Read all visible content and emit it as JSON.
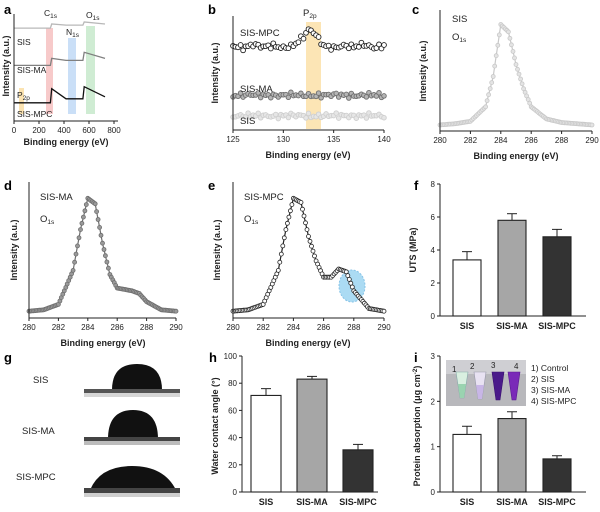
{
  "panels": {
    "a": {
      "letter": "a",
      "ylabel": "Intensity (a.u.)",
      "xlabel": "Binding energy (eV)",
      "xticks": [
        "0",
        "200",
        "400",
        "600",
        "800"
      ],
      "series_labels": [
        "SIS",
        "SIS-MA",
        "SIS-MPC"
      ],
      "peak_labels": [
        "C",
        "N",
        "O",
        "P"
      ],
      "peak_subs": [
        "1s",
        "1s",
        "1s",
        "2p"
      ]
    },
    "b": {
      "letter": "b",
      "ylabel": "Intensity (a.u.)",
      "xlabel": "Binding energy (eV)",
      "xticks": [
        "125",
        "130",
        "135",
        "140"
      ],
      "series_labels": [
        "SIS-MPC",
        "SIS-MA",
        "SIS"
      ],
      "peak_label": "P",
      "peak_sub": "2p"
    },
    "c": {
      "letter": "c",
      "ylabel": "Intensity (a.u.)",
      "xlabel": "Binding energy (eV)",
      "xticks": [
        "280",
        "282",
        "284",
        "286",
        "288",
        "290"
      ],
      "sample": "SIS",
      "orbital": "O",
      "orbital_sub": "1s"
    },
    "d": {
      "letter": "d",
      "ylabel": "Intensity (a.u.)",
      "xlabel": "Binding energy (eV)",
      "xticks": [
        "280",
        "282",
        "284",
        "286",
        "288",
        "290"
      ],
      "sample": "SIS-MA",
      "orbital": "O",
      "orbital_sub": "1s"
    },
    "e": {
      "letter": "e",
      "ylabel": "Intensity (a.u.)",
      "xlabel": "Binding energy (eV)",
      "xticks": [
        "280",
        "282",
        "284",
        "286",
        "288",
        "290"
      ],
      "sample": "SIS-MPC",
      "orbital": "O",
      "orbital_sub": "1s"
    },
    "f": {
      "letter": "f",
      "ylabel": "UTS (MPa)",
      "yticks": [
        "0",
        "2",
        "4",
        "6",
        "8"
      ]
    },
    "g": {
      "letter": "g",
      "samples": [
        "SIS",
        "SIS-MA",
        "SIS-MPC"
      ]
    },
    "h": {
      "letter": "h",
      "ylabel": "Water contact angle (°)",
      "yticks": [
        "0",
        "20",
        "40",
        "60",
        "80",
        "100"
      ]
    },
    "i": {
      "letter": "i",
      "ylabel_main": "Protein absorption (μg cm",
      "ylabel_sup": "-2",
      "ylabel_end": ")",
      "yticks": [
        "0",
        "1",
        "2",
        "3"
      ],
      "legend": [
        "1) Control",
        "2) SIS",
        "3) SIS-MA",
        "4) SIS-MPC"
      ],
      "tube_numbers": [
        "1",
        "2",
        "3",
        "4"
      ]
    }
  },
  "colors": {
    "sis_fill": "#ffffff",
    "ma_fill": "#a6a6a6",
    "mpc_fill": "#333333",
    "c_band": "#f4b8b8",
    "n_band": "#b8d4f4",
    "o_band": "#bfe6c4",
    "p_band": "#fbe0a8",
    "highlight": "#8fd0f0"
  },
  "chart_data": [
    {
      "panel": "a",
      "type": "line",
      "title": "",
      "xlabel": "Binding energy (eV)",
      "ylabel": "Intensity (a.u.)",
      "xlim": [
        0,
        800
      ],
      "grid": false,
      "series": [
        {
          "name": "SIS",
          "x": [
            0,
            280,
            290,
            400,
            530,
            540,
            700
          ],
          "y": [
            0.92,
            0.92,
            0.96,
            0.95,
            0.95,
            0.98,
            0.96
          ]
        },
        {
          "name": "SIS-MA",
          "x": [
            0,
            280,
            290,
            400,
            530,
            540,
            700
          ],
          "y": [
            0.55,
            0.55,
            0.62,
            0.6,
            0.6,
            0.68,
            0.62
          ]
        },
        {
          "name": "SIS-MPC",
          "x": [
            0,
            130,
            280,
            290,
            400,
            530,
            540,
            700
          ],
          "y": [
            0.18,
            0.18,
            0.18,
            0.32,
            0.22,
            0.22,
            0.34,
            0.24
          ]
        }
      ]
    },
    {
      "panel": "b",
      "type": "scatter",
      "title": "",
      "xlabel": "Binding energy (eV)",
      "ylabel": "Intensity (a.u.)",
      "xlim": [
        125,
        140
      ],
      "grid": false,
      "series": [
        {
          "name": "SIS-MPC",
          "x": [
            125,
            126,
            127,
            128,
            129,
            130,
            131,
            132,
            132.5,
            133,
            133.5,
            134,
            135,
            136,
            137,
            138,
            139,
            140
          ],
          "y": [
            0.74,
            0.72,
            0.75,
            0.73,
            0.74,
            0.72,
            0.74,
            0.82,
            0.88,
            0.86,
            0.8,
            0.74,
            0.72,
            0.74,
            0.73,
            0.75,
            0.72,
            0.74
          ]
        },
        {
          "name": "SIS-MA",
          "x": [
            125,
            127,
            129,
            131,
            133,
            135,
            137,
            139,
            140
          ],
          "y": [
            0.3,
            0.31,
            0.3,
            0.31,
            0.3,
            0.31,
            0.3,
            0.31,
            0.3
          ]
        },
        {
          "name": "SIS",
          "x": [
            125,
            127,
            129,
            131,
            133,
            135,
            137,
            139,
            140
          ],
          "y": [
            0.12,
            0.13,
            0.12,
            0.13,
            0.12,
            0.13,
            0.12,
            0.13,
            0.12
          ]
        }
      ]
    },
    {
      "panel": "c",
      "type": "line",
      "title": "",
      "xlabel": "Binding energy (eV)",
      "ylabel": "Intensity (a.u.)",
      "xlim": [
        280,
        290
      ],
      "grid": false,
      "series": [
        {
          "name": "SIS",
          "x": [
            280,
            281,
            282,
            283,
            283.5,
            284,
            284.5,
            285,
            285.5,
            286,
            287,
            288,
            289,
            290
          ],
          "y": [
            0.05,
            0.06,
            0.08,
            0.2,
            0.45,
            0.88,
            0.82,
            0.55,
            0.35,
            0.2,
            0.1,
            0.07,
            0.06,
            0.05
          ]
        }
      ]
    },
    {
      "panel": "d",
      "type": "line",
      "title": "",
      "xlabel": "Binding energy (eV)",
      "ylabel": "Intensity (a.u.)",
      "xlim": [
        280,
        290
      ],
      "grid": false,
      "series": [
        {
          "name": "SIS-MA",
          "x": [
            280,
            281,
            282,
            283,
            283.5,
            284,
            284.5,
            285,
            285.5,
            286,
            287,
            287.5,
            288,
            289,
            290
          ],
          "y": [
            0.05,
            0.06,
            0.1,
            0.35,
            0.65,
            0.88,
            0.84,
            0.55,
            0.32,
            0.22,
            0.2,
            0.18,
            0.12,
            0.06,
            0.05
          ]
        }
      ]
    },
    {
      "panel": "e",
      "type": "line",
      "title": "",
      "xlabel": "Binding energy (eV)",
      "ylabel": "Intensity (a.u.)",
      "xlim": [
        280,
        290
      ],
      "grid": false,
      "series": [
        {
          "name": "SIS-MPC",
          "x": [
            280,
            281,
            282,
            283,
            283.5,
            284,
            284.5,
            285,
            285.5,
            286,
            286.5,
            287,
            287.5,
            288,
            289,
            290
          ],
          "y": [
            0.05,
            0.06,
            0.1,
            0.35,
            0.65,
            0.88,
            0.85,
            0.6,
            0.42,
            0.3,
            0.3,
            0.36,
            0.34,
            0.2,
            0.07,
            0.05
          ]
        }
      ]
    },
    {
      "panel": "f",
      "type": "bar",
      "title": "",
      "xlabel": "",
      "ylabel": "UTS (MPa)",
      "ylim": [
        0,
        8
      ],
      "categories": [
        "SIS",
        "SIS-MA",
        "SIS-MPC"
      ],
      "values": [
        3.4,
        5.8,
        4.8
      ],
      "errors": [
        0.5,
        0.4,
        0.45
      ]
    },
    {
      "panel": "h",
      "type": "bar",
      "title": "",
      "xlabel": "",
      "ylabel": "Water contact angle (°)",
      "ylim": [
        0,
        100
      ],
      "categories": [
        "SIS",
        "SIS-MA",
        "SIS-MPC"
      ],
      "values": [
        71,
        83,
        31
      ],
      "errors": [
        5,
        2,
        4
      ]
    },
    {
      "panel": "i",
      "type": "bar",
      "title": "",
      "xlabel": "",
      "ylabel": "Protein absorption (μg cm-2)",
      "ylim": [
        0,
        3
      ],
      "categories": [
        "SIS",
        "SIS-MA",
        "SIS-MPC"
      ],
      "values": [
        1.27,
        1.62,
        0.73
      ],
      "errors": [
        0.18,
        0.15,
        0.07
      ]
    }
  ]
}
